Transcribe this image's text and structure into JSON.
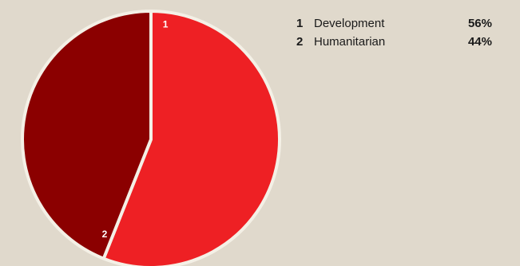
{
  "chart_data": {
    "type": "pie",
    "title": "",
    "slices": [
      {
        "number": "1",
        "label": "Development",
        "value": 56,
        "display": "56%",
        "color": "#ee2024"
      },
      {
        "number": "2",
        "label": "Humanitarian",
        "value": 44,
        "display": "44%",
        "color": "#8b0000"
      }
    ],
    "legend_position": "right",
    "start_angle": "12 o'clock, clockwise"
  },
  "colors": {
    "background": "#e0d9cc",
    "slice_border": "#f4f0e6"
  }
}
